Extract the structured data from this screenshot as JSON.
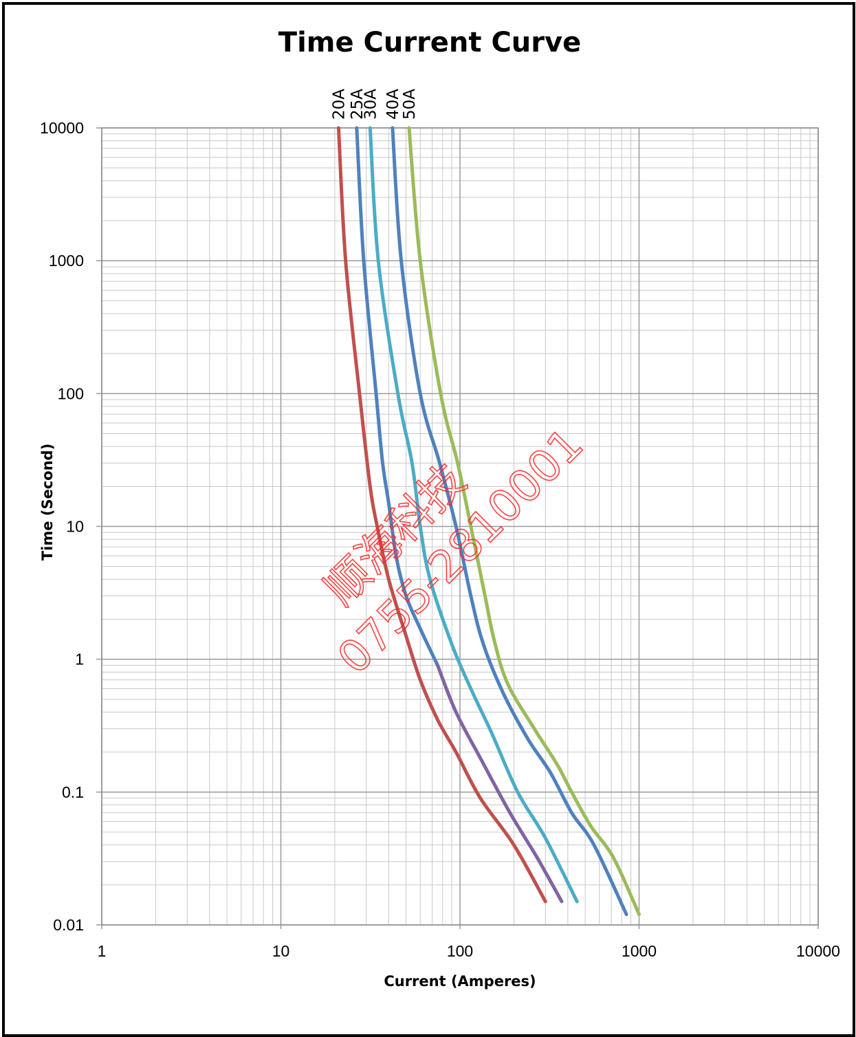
{
  "chart_data": {
    "type": "line",
    "title": "Time Current Curve",
    "xlabel": "Current  (Amperes)",
    "ylabel": "Time (Second)",
    "x_scale": "log",
    "y_scale": "log",
    "xlim": [
      1,
      10000
    ],
    "ylim": [
      0.01,
      10000
    ],
    "x_ticks": [
      "1",
      "10",
      "100",
      "1000",
      "10000"
    ],
    "y_ticks": [
      "10000",
      "1000",
      "100",
      "10",
      "1",
      "0.1",
      "0.01"
    ],
    "grid": true,
    "series_label_placement": "top, rotated vertical",
    "series": [
      {
        "name": "20A",
        "color": "#c0504d",
        "points": [
          [
            21,
            10000
          ],
          [
            23,
            1000
          ],
          [
            27.5,
            100
          ],
          [
            31.5,
            20
          ],
          [
            34.5,
            10
          ],
          [
            40,
            4
          ],
          [
            50,
            1.5
          ],
          [
            60,
            0.7
          ],
          [
            75,
            0.35
          ],
          [
            95,
            0.2
          ],
          [
            130,
            0.09
          ],
          [
            200,
            0.04
          ],
          [
            300,
            0.015
          ]
        ]
      },
      {
        "name": "25A",
        "color": "#4f81bd",
        "points": [
          [
            26.5,
            10000
          ],
          [
            29,
            1000
          ],
          [
            34,
            100
          ],
          [
            37,
            30
          ],
          [
            40,
            15
          ],
          [
            44,
            6
          ],
          [
            50,
            3
          ],
          [
            60,
            1.7
          ],
          [
            75,
            0.9
          ]
        ]
      },
      {
        "name": "25A",
        "color": "#8064a2",
        "points": [
          [
            75,
            0.9
          ],
          [
            95,
            0.4
          ],
          [
            130,
            0.18
          ],
          [
            190,
            0.07
          ],
          [
            270,
            0.032
          ],
          [
            370,
            0.015
          ]
        ]
      },
      {
        "name": "30A",
        "color": "#4bacc6",
        "points": [
          [
            31.5,
            10000
          ],
          [
            35,
            1000
          ],
          [
            45,
            100
          ],
          [
            54,
            30
          ],
          [
            60,
            10
          ],
          [
            68,
            4
          ],
          [
            90,
            1.3
          ],
          [
            115,
            0.6
          ],
          [
            150,
            0.28
          ],
          [
            210,
            0.1
          ],
          [
            300,
            0.045
          ],
          [
            450,
            0.015
          ]
        ]
      },
      {
        "name": "40A",
        "color": "#4f81bd",
        "points": [
          [
            42,
            10000
          ],
          [
            47,
            1000
          ],
          [
            60,
            100
          ],
          [
            77,
            30
          ],
          [
            95,
            10
          ],
          [
            115,
            3
          ],
          [
            135,
            1.3
          ],
          [
            175,
            0.55
          ],
          [
            240,
            0.25
          ],
          [
            320,
            0.14
          ],
          [
            420,
            0.07
          ],
          [
            560,
            0.04
          ],
          [
            850,
            0.012
          ]
        ]
      },
      {
        "name": "50A",
        "color": "#9bbb59",
        "points": [
          [
            52,
            10000
          ],
          [
            60,
            1000
          ],
          [
            78,
            100
          ],
          [
            97,
            30
          ],
          [
            115,
            10
          ],
          [
            138,
            3
          ],
          [
            155,
            1.4
          ],
          [
            185,
            0.65
          ],
          [
            260,
            0.3
          ],
          [
            350,
            0.16
          ],
          [
            420,
            0.1
          ],
          [
            540,
            0.055
          ],
          [
            720,
            0.032
          ],
          [
            1000,
            0.012
          ]
        ]
      }
    ]
  },
  "watermark": {
    "line1": "顺海科技",
    "line2": "0755-2810001",
    "color": "#ff2020"
  }
}
